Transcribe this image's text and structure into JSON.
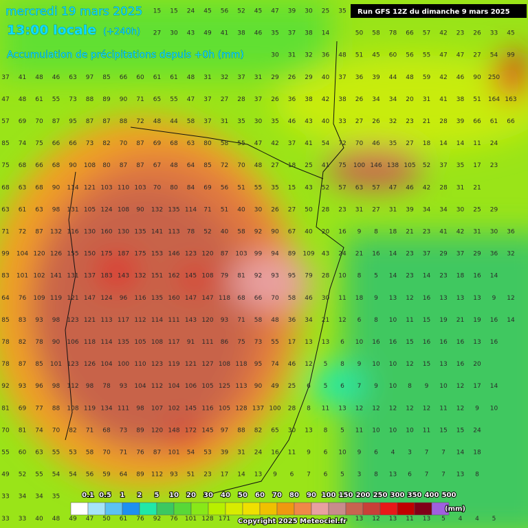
{
  "header": {
    "date": "mercredi 19 mars 2025",
    "time": "13:00 locale",
    "lead": "(+240h)",
    "subtitle": "Accumulation de précipitations depuis +0h (mm)",
    "run": "Run GFS 12Z du dimanche 9 mars 2025"
  },
  "grid": {
    "rows": [
      [
        null,
        null,
        null,
        null,
        null,
        null,
        null,
        null,
        null,
        15,
        15,
        24,
        45,
        56,
        52,
        45,
        47,
        39,
        30,
        25,
        35
      ],
      [
        null,
        null,
        null,
        null,
        null,
        null,
        null,
        null,
        null,
        27,
        30,
        43,
        49,
        41,
        38,
        46,
        35,
        37,
        38,
        14,
        null,
        50,
        58,
        78,
        66,
        57,
        42,
        23,
        26,
        33,
        45
      ],
      [
        null,
        null,
        null,
        null,
        null,
        null,
        null,
        null,
        null,
        null,
        null,
        null,
        null,
        null,
        null,
        null,
        30,
        31,
        32,
        36,
        48,
        51,
        45,
        60,
        56,
        55,
        47,
        47,
        27,
        54,
        99
      ],
      [
        37,
        41,
        48,
        46,
        63,
        97,
        85,
        66,
        60,
        61,
        61,
        48,
        31,
        32,
        37,
        31,
        29,
        26,
        29,
        40,
        37,
        36,
        39,
        44,
        48,
        59,
        42,
        46,
        90,
        250
      ],
      [
        47,
        48,
        61,
        55,
        73,
        88,
        89,
        90,
        71,
        65,
        55,
        47,
        37,
        27,
        28,
        37,
        26,
        36,
        38,
        42,
        38,
        26,
        34,
        34,
        20,
        31,
        41,
        38,
        51,
        164,
        163
      ],
      [
        57,
        69,
        70,
        87,
        95,
        87,
        87,
        88,
        72,
        48,
        44,
        58,
        37,
        31,
        35,
        30,
        35,
        46,
        43,
        40,
        33,
        27,
        26,
        32,
        23,
        21,
        28,
        39,
        66,
        61,
        66
      ],
      [
        85,
        74,
        75,
        66,
        66,
        73,
        82,
        70,
        87,
        69,
        68,
        63,
        80,
        58,
        55,
        47,
        42,
        37,
        41,
        54,
        72,
        70,
        46,
        35,
        27,
        18,
        14,
        14,
        11,
        24
      ],
      [
        75,
        68,
        66,
        68,
        90,
        108,
        80,
        87,
        87,
        67,
        48,
        64,
        85,
        72,
        70,
        48,
        27,
        18,
        25,
        41,
        75,
        100,
        146,
        138,
        105,
        52,
        37,
        35,
        17,
        23
      ],
      [
        68,
        63,
        68,
        90,
        114,
        121,
        103,
        110,
        103,
        70,
        80,
        84,
        69,
        56,
        51,
        55,
        35,
        15,
        43,
        52,
        57,
        63,
        57,
        47,
        46,
        42,
        28,
        31,
        21
      ],
      [
        63,
        61,
        63,
        98,
        131,
        105,
        124,
        108,
        90,
        132,
        135,
        114,
        71,
        51,
        40,
        30,
        26,
        27,
        50,
        28,
        23,
        31,
        27,
        31,
        39,
        34,
        34,
        30,
        25,
        29
      ],
      [
        71,
        72,
        87,
        132,
        116,
        130,
        160,
        130,
        135,
        141,
        113,
        78,
        52,
        40,
        58,
        92,
        90,
        67,
        40,
        20,
        16,
        9,
        8,
        18,
        21,
        23,
        41,
        42,
        31,
        30,
        36
      ],
      [
        99,
        104,
        120,
        126,
        155,
        150,
        175,
        187,
        175,
        153,
        146,
        123,
        120,
        87,
        103,
        99,
        94,
        89,
        109,
        43,
        24,
        21,
        16,
        14,
        23,
        37,
        29,
        37,
        29,
        36,
        32
      ],
      [
        83,
        101,
        102,
        141,
        131,
        137,
        183,
        143,
        132,
        151,
        162,
        145,
        108,
        79,
        81,
        92,
        93,
        95,
        79,
        28,
        10,
        8,
        5,
        14,
        23,
        14,
        23,
        18,
        16,
        14
      ],
      [
        64,
        76,
        109,
        119,
        121,
        147,
        124,
        96,
        116,
        135,
        160,
        147,
        147,
        118,
        68,
        66,
        70,
        58,
        46,
        30,
        11,
        18,
        9,
        13,
        12,
        16,
        13,
        13,
        13,
        9,
        12
      ],
      [
        85,
        83,
        93,
        98,
        123,
        121,
        113,
        117,
        112,
        114,
        111,
        143,
        120,
        93,
        71,
        58,
        48,
        36,
        34,
        21,
        12,
        6,
        8,
        10,
        11,
        15,
        19,
        21,
        19,
        16,
        14
      ],
      [
        78,
        82,
        78,
        90,
        106,
        118,
        114,
        135,
        105,
        108,
        117,
        91,
        111,
        86,
        75,
        73,
        55,
        17,
        13,
        13,
        6,
        10,
        16,
        16,
        15,
        16,
        16,
        16,
        13,
        16
      ],
      [
        78,
        87,
        85,
        101,
        123,
        126,
        104,
        100,
        110,
        123,
        119,
        121,
        127,
        108,
        118,
        95,
        74,
        46,
        12,
        5,
        8,
        9,
        10,
        10,
        12,
        15,
        13,
        16,
        20
      ],
      [
        92,
        93,
        96,
        98,
        112,
        98,
        78,
        93,
        104,
        112,
        104,
        106,
        105,
        125,
        113,
        90,
        49,
        25,
        6,
        5,
        6,
        7,
        9,
        10,
        8,
        9,
        10,
        12,
        17,
        14
      ],
      [
        81,
        69,
        77,
        88,
        108,
        119,
        134,
        111,
        98,
        107,
        102,
        145,
        116,
        105,
        128,
        137,
        100,
        28,
        8,
        11,
        13,
        12,
        12,
        12,
        12,
        12,
        11,
        12,
        9,
        10
      ],
      [
        70,
        81,
        74,
        70,
        82,
        71,
        68,
        73,
        89,
        120,
        148,
        172,
        145,
        97,
        88,
        82,
        65,
        30,
        13,
        8,
        5,
        11,
        10,
        10,
        10,
        11,
        15,
        15,
        24
      ],
      [
        55,
        60,
        63,
        55,
        53,
        58,
        70,
        71,
        76,
        87,
        101,
        54,
        53,
        39,
        31,
        24,
        16,
        11,
        9,
        6,
        10,
        9,
        6,
        4,
        3,
        7,
        7,
        14,
        18
      ],
      [
        49,
        52,
        55,
        54,
        54,
        56,
        59,
        64,
        89,
        112,
        93,
        51,
        23,
        17,
        14,
        13,
        9,
        6,
        7,
        6,
        5,
        3,
        8,
        13,
        6,
        7,
        7,
        13,
        8
      ],
      [
        33,
        34,
        34,
        35
      ],
      [
        33,
        33,
        40,
        48,
        49,
        47,
        50,
        61,
        76,
        92,
        76,
        101,
        128,
        171,
        null,
        null,
        null,
        null,
        null,
        null,
        null,
        13,
        12,
        13,
        11,
        13,
        5,
        4,
        4,
        5
      ]
    ]
  },
  "legend": {
    "labels": [
      0.1,
      0.5,
      1,
      2,
      5,
      10,
      20,
      30,
      40,
      50,
      60,
      70,
      80,
      90,
      100,
      150,
      200,
      250,
      300,
      350,
      400,
      500
    ],
    "colors": [
      "#ffffff",
      "#a6e4f8",
      "#5cc2f2",
      "#1e90f0",
      "#20e8a8",
      "#3cc860",
      "#58d838",
      "#88e818",
      "#b8f000",
      "#d8ec00",
      "#f0e000",
      "#f0c000",
      "#f09810",
      "#f08848",
      "#e8a0a0",
      "#c88c8c",
      "#c86450",
      "#c84038",
      "#e81818",
      "#c00000",
      "#800018",
      "#a060e0"
    ],
    "unit": "(mm)"
  },
  "copyright": "Copyright 2025 Meteociel.fr"
}
